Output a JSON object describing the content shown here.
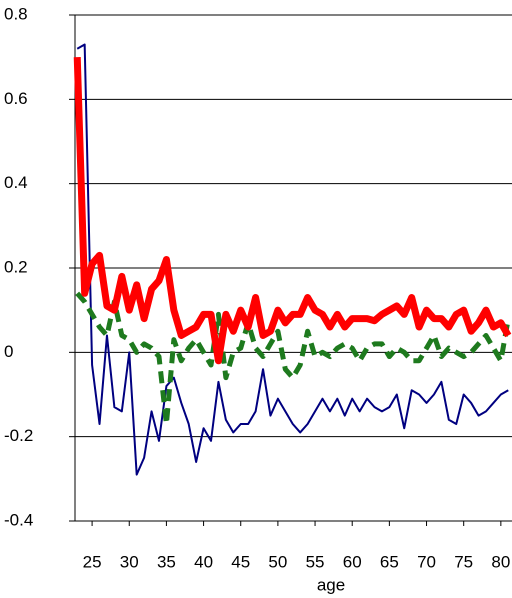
{
  "chart_data": {
    "type": "line",
    "x_label": "age",
    "x": [
      23,
      24,
      25,
      26,
      27,
      28,
      29,
      30,
      31,
      32,
      33,
      34,
      35,
      36,
      37,
      38,
      39,
      40,
      41,
      42,
      43,
      44,
      45,
      46,
      47,
      48,
      49,
      50,
      51,
      52,
      53,
      54,
      55,
      56,
      57,
      58,
      59,
      60,
      61,
      62,
      63,
      64,
      65,
      66,
      67,
      68,
      69,
      70,
      71,
      72,
      73,
      74,
      75,
      76,
      77,
      78,
      79,
      80,
      81
    ],
    "xlim": [
      22.7,
      81.5
    ],
    "xticks": [
      25,
      30,
      35,
      40,
      45,
      50,
      55,
      60,
      65,
      70,
      75,
      80
    ],
    "ylim": [
      -0.4,
      0.8
    ],
    "yticks": [
      0.8,
      0.6,
      0.4,
      0.2,
      0,
      -0.2,
      -0.4
    ],
    "grid": true,
    "series": [
      {
        "color": "#000080",
        "width": 2,
        "dash": "none",
        "values": [
          0.72,
          0.73,
          -0.03,
          -0.17,
          0.04,
          -0.13,
          -0.14,
          0.0,
          -0.29,
          -0.25,
          -0.14,
          -0.21,
          -0.08,
          -0.06,
          -0.12,
          -0.17,
          -0.26,
          -0.18,
          -0.21,
          -0.07,
          -0.16,
          -0.19,
          -0.17,
          -0.17,
          -0.14,
          -0.04,
          -0.15,
          -0.11,
          -0.14,
          -0.17,
          -0.19,
          -0.17,
          -0.14,
          -0.11,
          -0.14,
          -0.11,
          -0.15,
          -0.11,
          -0.14,
          -0.11,
          -0.13,
          -0.14,
          -0.13,
          -0.1,
          -0.18,
          -0.09,
          -0.1,
          -0.12,
          -0.1,
          -0.07,
          -0.16,
          -0.17,
          -0.1,
          -0.12,
          -0.15,
          -0.14,
          -0.12,
          -0.1,
          -0.09
        ]
      },
      {
        "color": "#1e7a1e",
        "width": 5,
        "dash": "12 7",
        "values": [
          0.14,
          0.12,
          0.09,
          0.06,
          0.04,
          0.12,
          0.04,
          0.03,
          0.0,
          0.02,
          0.01,
          -0.01,
          -0.17,
          0.03,
          -0.02,
          0.01,
          0.03,
          0.0,
          -0.03,
          0.09,
          -0.06,
          0.0,
          0.01,
          0.07,
          0.01,
          -0.01,
          0.02,
          0.05,
          -0.04,
          -0.06,
          -0.03,
          0.05,
          -0.01,
          0.0,
          -0.01,
          0.01,
          0.02,
          0.01,
          -0.02,
          0.01,
          0.02,
          0.02,
          -0.01,
          0.01,
          0.0,
          -0.02,
          -0.02,
          0.01,
          0.04,
          -0.01,
          0.01,
          0.0,
          -0.01,
          0.0,
          0.02,
          0.04,
          0.01,
          -0.02,
          0.08
        ]
      },
      {
        "color": "#ff0000",
        "width": 7,
        "dash": "none",
        "values": [
          0.7,
          0.14,
          0.21,
          0.23,
          0.11,
          0.1,
          0.18,
          0.1,
          0.16,
          0.08,
          0.15,
          0.17,
          0.22,
          0.1,
          0.04,
          0.05,
          0.06,
          0.09,
          0.09,
          -0.02,
          0.09,
          0.05,
          0.1,
          0.06,
          0.13,
          0.04,
          0.05,
          0.1,
          0.07,
          0.09,
          0.09,
          0.13,
          0.1,
          0.09,
          0.06,
          0.09,
          0.06,
          0.08,
          0.08,
          0.08,
          0.075,
          0.09,
          0.1,
          0.11,
          0.09,
          0.13,
          0.06,
          0.1,
          0.08,
          0.08,
          0.06,
          0.09,
          0.1,
          0.05,
          0.07,
          0.1,
          0.06,
          0.07,
          0.04
        ]
      }
    ]
  }
}
